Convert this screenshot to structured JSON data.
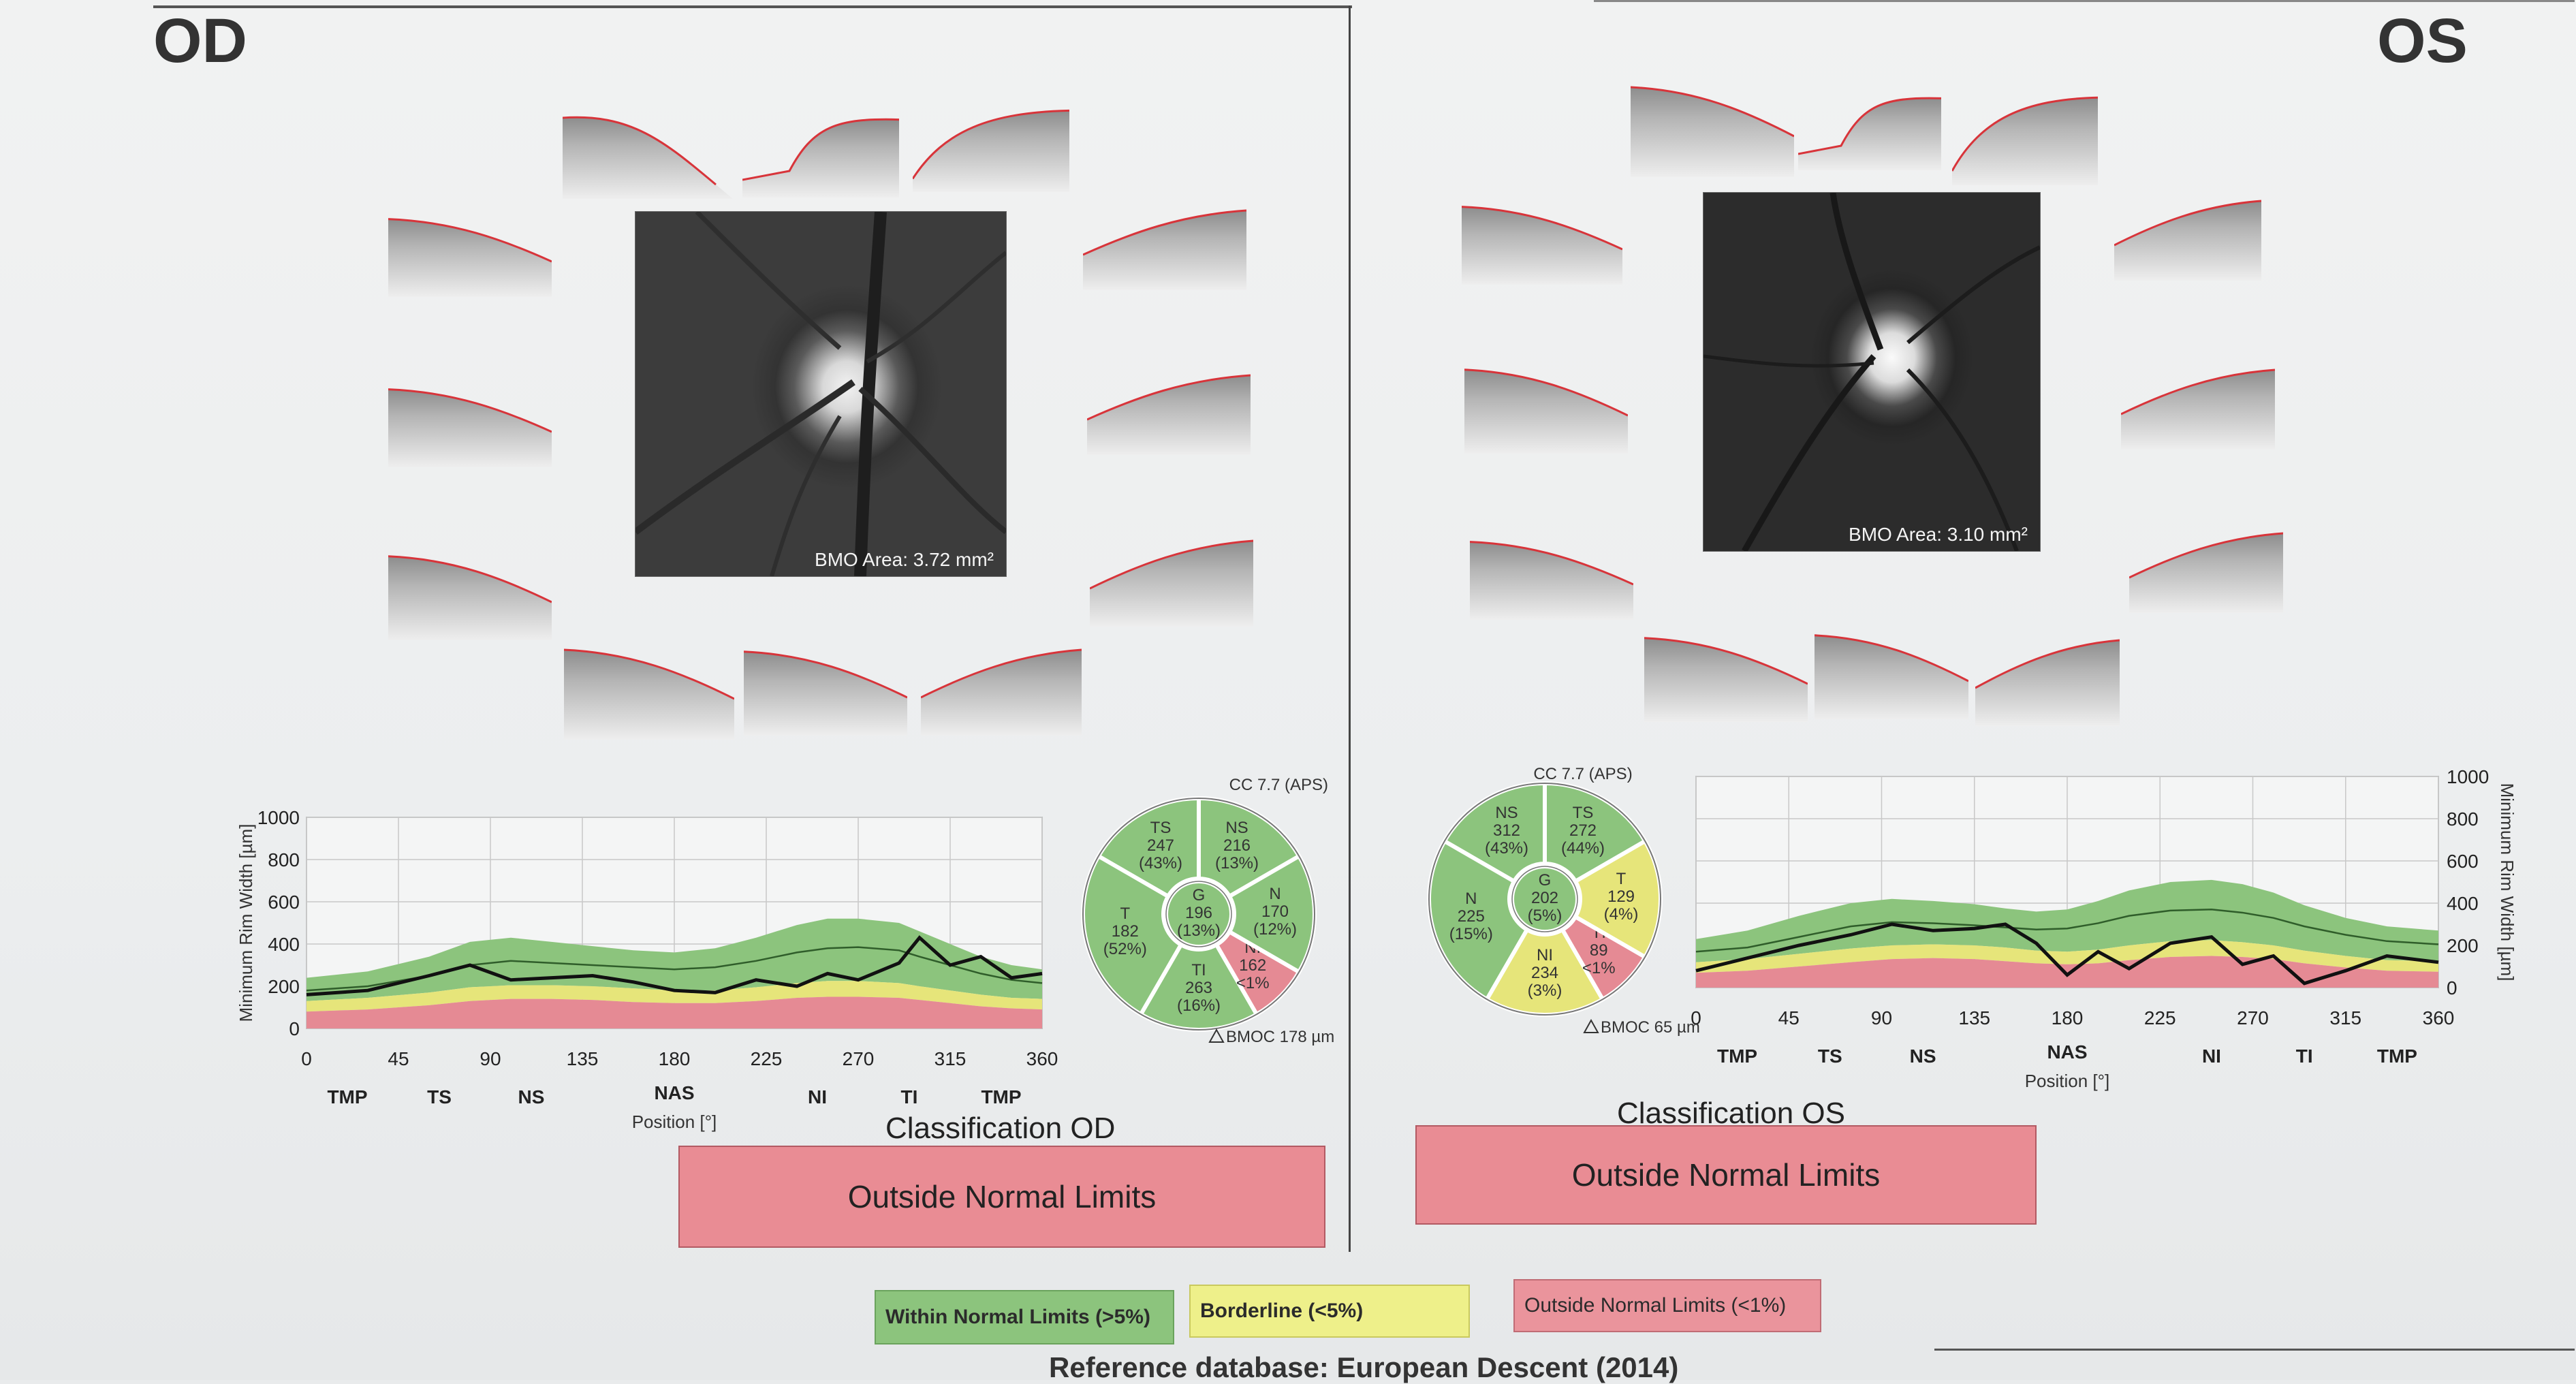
{
  "od": {
    "eye": "OD",
    "bmo_area": "BMO Area: 3.72 mm²",
    "cc": "CC 7.7 (APS)",
    "bmoc": "BMOC 178 µm",
    "sectors": {
      "TS": {
        "abbr": "TS",
        "value": "247",
        "pct": "(43%)",
        "color": "#8cc47d"
      },
      "NS": {
        "abbr": "NS",
        "value": "216",
        "pct": "(13%)",
        "color": "#8cc47d"
      },
      "N": {
        "abbr": "N",
        "value": "170",
        "pct": "(12%)",
        "color": "#8cc47d"
      },
      "NI": {
        "abbr": "NI",
        "value": "162",
        "pct": "<1%",
        "color": "#e58a94"
      },
      "TI": {
        "abbr": "TI",
        "value": "263",
        "pct": "(16%)",
        "color": "#8cc47d"
      },
      "T": {
        "abbr": "T",
        "value": "182",
        "pct": "(52%)",
        "color": "#8cc47d"
      },
      "G": {
        "abbr": "G",
        "value": "196",
        "pct": "(13%)",
        "color": "#8cc47d"
      }
    },
    "classification_title": "Classification OD",
    "classification": "Outside Normal Limits"
  },
  "os": {
    "eye": "OS",
    "bmo_area": "BMO Area: 3.10 mm²",
    "cc": "CC 7.7 (APS)",
    "bmoc": "BMOC 65 µm",
    "sectors": {
      "NS": {
        "abbr": "NS",
        "value": "312",
        "pct": "(43%)",
        "color": "#8cc47d"
      },
      "TS": {
        "abbr": "TS",
        "value": "272",
        "pct": "(44%)",
        "color": "#8cc47d"
      },
      "T": {
        "abbr": "T",
        "value": "129",
        "pct": "(4%)",
        "color": "#e6e57a"
      },
      "TI": {
        "abbr": "TI",
        "value": "89",
        "pct": "<1%",
        "color": "#e58a94"
      },
      "NI": {
        "abbr": "NI",
        "value": "234",
        "pct": "(3%)",
        "color": "#e6e57a"
      },
      "N": {
        "abbr": "N",
        "value": "225",
        "pct": "(15%)",
        "color": "#8cc47d"
      },
      "G": {
        "abbr": "G",
        "value": "202",
        "pct": "(5%)",
        "color": "#8cc47d"
      }
    },
    "classification_title": "Classification OS",
    "classification": "Outside Normal Limits"
  },
  "chart_data": [
    {
      "type": "area",
      "eye": "OD",
      "ylabel": "Minimum Rim Width [µm]",
      "xlabel": "Position [°]",
      "ylim": [
        0,
        1000
      ],
      "xlim": [
        0,
        360
      ],
      "x_ticks": [
        "0",
        "45",
        "90",
        "135",
        "180",
        "225",
        "270",
        "315",
        "360"
      ],
      "y_ticks": [
        "0",
        "200",
        "400",
        "600",
        "800",
        "1000"
      ],
      "sector_labels": [
        {
          "label": "TMP",
          "x": 20
        },
        {
          "label": "TS",
          "x": 65
        },
        {
          "label": "NS",
          "x": 110
        },
        {
          "label": "NAS",
          "x": 180
        },
        {
          "label": "NI",
          "x": 250
        },
        {
          "label": "TI",
          "x": 295
        },
        {
          "label": "TMP",
          "x": 340
        }
      ],
      "x": [
        0,
        30,
        60,
        80,
        100,
        120,
        140,
        160,
        180,
        200,
        220,
        240,
        255,
        270,
        290,
        300,
        315,
        330,
        345,
        360
      ],
      "measured": [
        160,
        180,
        250,
        300,
        230,
        240,
        250,
        220,
        180,
        170,
        230,
        200,
        260,
        230,
        310,
        430,
        300,
        340,
        240,
        260
      ],
      "bands": {
        "outside_upper": [
          80,
          90,
          110,
          130,
          140,
          140,
          135,
          125,
          120,
          120,
          130,
          145,
          150,
          150,
          145,
          135,
          120,
          105,
          95,
          90
        ],
        "borderline_upper": [
          130,
          145,
          170,
          195,
          205,
          205,
          200,
          190,
          180,
          180,
          195,
          215,
          225,
          225,
          215,
          200,
          180,
          160,
          145,
          140
        ],
        "normal_upper": [
          240,
          270,
          340,
          410,
          430,
          410,
          390,
          370,
          360,
          380,
          430,
          490,
          520,
          520,
          500,
          460,
          400,
          340,
          300,
          280
        ],
        "mean": [
          180,
          200,
          250,
          300,
          320,
          310,
          300,
          290,
          280,
          290,
          320,
          360,
          380,
          385,
          370,
          340,
          300,
          260,
          230,
          215
        ]
      }
    },
    {
      "type": "area",
      "eye": "OS",
      "ylabel": "Minimum Rim Width [µm]",
      "xlabel": "Position [°]",
      "ylim": [
        0,
        1000
      ],
      "xlim": [
        0,
        360
      ],
      "x_ticks": [
        "0",
        "45",
        "90",
        "135",
        "180",
        "225",
        "270",
        "315",
        "360"
      ],
      "y_ticks": [
        "0",
        "200",
        "400",
        "600",
        "800",
        "1000"
      ],
      "sector_labels": [
        {
          "label": "TMP",
          "x": 20
        },
        {
          "label": "TS",
          "x": 65
        },
        {
          "label": "NS",
          "x": 110
        },
        {
          "label": "NAS",
          "x": 180
        },
        {
          "label": "NI",
          "x": 250
        },
        {
          "label": "TI",
          "x": 295
        },
        {
          "label": "TMP",
          "x": 340
        }
      ],
      "x": [
        0,
        25,
        50,
        75,
        95,
        115,
        135,
        150,
        165,
        180,
        195,
        210,
        230,
        250,
        265,
        280,
        295,
        315,
        335,
        360
      ],
      "measured": [
        80,
        140,
        200,
        250,
        300,
        270,
        280,
        300,
        210,
        60,
        170,
        90,
        210,
        240,
        110,
        150,
        20,
        80,
        150,
        120
      ],
      "bands": {
        "outside_upper": [
          70,
          80,
          100,
          120,
          135,
          140,
          135,
          125,
          115,
          110,
          115,
          130,
          145,
          150,
          145,
          135,
          115,
          95,
          80,
          75
        ],
        "borderline_upper": [
          120,
          135,
          160,
          185,
          200,
          205,
          200,
          190,
          175,
          170,
          180,
          200,
          220,
          225,
          215,
          200,
          175,
          150,
          130,
          125
        ],
        "normal_upper": [
          230,
          270,
          340,
          400,
          420,
          410,
          395,
          375,
          360,
          370,
          410,
          460,
          500,
          510,
          490,
          450,
          390,
          330,
          290,
          270
        ],
        "mean": [
          170,
          190,
          240,
          290,
          310,
          305,
          295,
          285,
          275,
          280,
          305,
          340,
          365,
          370,
          355,
          330,
          290,
          250,
          220,
          205
        ]
      }
    }
  ],
  "legend": {
    "within": "Within Normal Limits (>5%)",
    "borderline": "Borderline (<5%)",
    "outside": "Outside Normal Limits (<1%)"
  },
  "colors": {
    "within": "#8cc47d",
    "borderline": "#e6e57a",
    "outside": "#e58a94",
    "classification": "#e98c94"
  },
  "footer": "Reference database: European Descent (2014)"
}
